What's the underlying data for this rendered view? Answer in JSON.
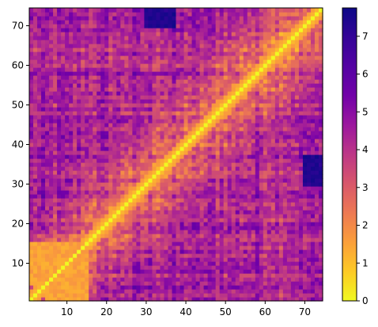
{
  "chart_data": {
    "type": "heatmap",
    "title": "",
    "xlabel": "",
    "ylabel": "",
    "n": 74,
    "xlim": [
      0.5,
      74.5
    ],
    "ylim": [
      0.5,
      74.5
    ],
    "x_ticks": [
      10,
      20,
      30,
      40,
      50,
      60,
      70
    ],
    "y_ticks": [
      10,
      20,
      30,
      40,
      50,
      60,
      70
    ],
    "colorbar": {
      "cmap": "plasma_r",
      "vmin": 0,
      "vmax": 7.75,
      "ticks": [
        0,
        1,
        2,
        3,
        4,
        5,
        6,
        7
      ]
    },
    "diagonal_value": 0,
    "value_range_offdiagonal": [
      0.5,
      7.7
    ],
    "symmetric": true,
    "notable_regions": [
      {
        "rows": [
          30,
          37
        ],
        "cols": [
          70,
          74
        ],
        "approx_value": 7.5
      },
      {
        "rows": [
          70,
          74
        ],
        "cols": [
          30,
          36
        ],
        "approx_value": 7.3
      },
      {
        "rows": [
          5,
          15
        ],
        "cols": [
          1,
          15
        ],
        "approx_value": 1.5
      }
    ],
    "colors": {
      "low": "#f0f921",
      "mid": "#e16462",
      "high": "#0d0887"
    }
  }
}
